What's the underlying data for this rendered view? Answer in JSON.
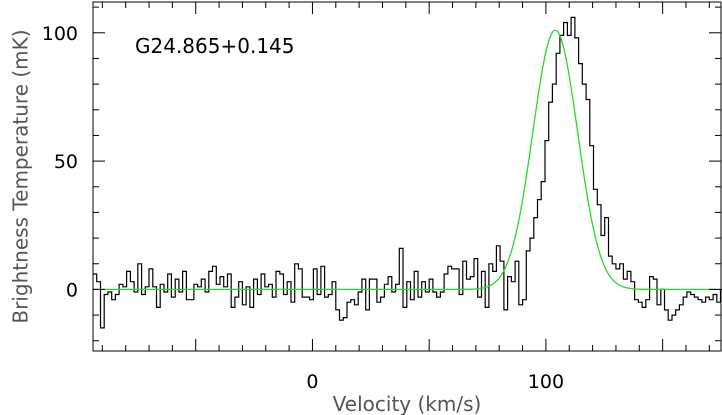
{
  "chart_data": {
    "type": "line",
    "annotation": "G24.865+0.145",
    "xlabel": "Velocity (km/s)",
    "ylabel": "Brightness Temperature (mK)",
    "xlim": [
      -94,
      175
    ],
    "ylim": [
      -24,
      112
    ],
    "xticks": [
      0,
      100
    ],
    "yticks": [
      0,
      50,
      100
    ],
    "grid": false,
    "legend": "none",
    "series": [
      {
        "kind": "histogram-step",
        "color": "#000000",
        "bin_width": 1.6,
        "x_start": -94,
        "values": [
          6,
          3,
          -15,
          -2,
          -1,
          -4,
          -2,
          2,
          1,
          7,
          3,
          -1,
          10,
          -2,
          1,
          8,
          1,
          -7,
          2,
          -1,
          6,
          -3,
          4,
          -1,
          7,
          -4,
          -4,
          2,
          1,
          4,
          -1,
          7,
          9,
          2,
          5,
          1,
          6,
          -7,
          -3,
          3,
          -6,
          1,
          -7,
          4,
          -2,
          6,
          1,
          2,
          -3,
          7,
          6,
          -2,
          3,
          -5,
          10,
          8,
          -3,
          -3,
          -4,
          8,
          -2,
          9,
          -3,
          -2,
          3,
          -8,
          -12,
          -11,
          -5,
          -4,
          -6,
          -1,
          4,
          -8,
          4,
          4,
          -5,
          -3,
          2,
          5,
          -1,
          2,
          16,
          -7,
          3,
          -4,
          7,
          -3,
          3,
          -1,
          4,
          -1,
          -3,
          -1,
          6,
          9,
          8,
          8,
          -2,
          11,
          4,
          5,
          12,
          -3,
          7,
          -7,
          10,
          7,
          17,
          11,
          -8,
          5,
          3,
          11,
          -6,
          -4,
          15,
          20,
          28,
          35,
          42,
          58,
          73,
          80,
          92,
          99,
          104,
          99,
          106,
          98,
          88,
          80,
          74,
          56,
          39,
          33,
          21,
          28,
          13,
          10,
          8,
          10,
          4,
          7,
          3,
          -4,
          -5,
          -7,
          -4,
          5,
          4,
          -6,
          0,
          -8,
          -12,
          -10,
          -8,
          -6,
          -3,
          -1,
          -2,
          -3,
          -4,
          -5,
          -3,
          -4,
          -2,
          -5,
          0,
          -1
        ]
      },
      {
        "kind": "gaussian-fit",
        "color": "#22dd22",
        "amplitude": 101,
        "center": 104,
        "fwhm": 22.6
      }
    ]
  }
}
